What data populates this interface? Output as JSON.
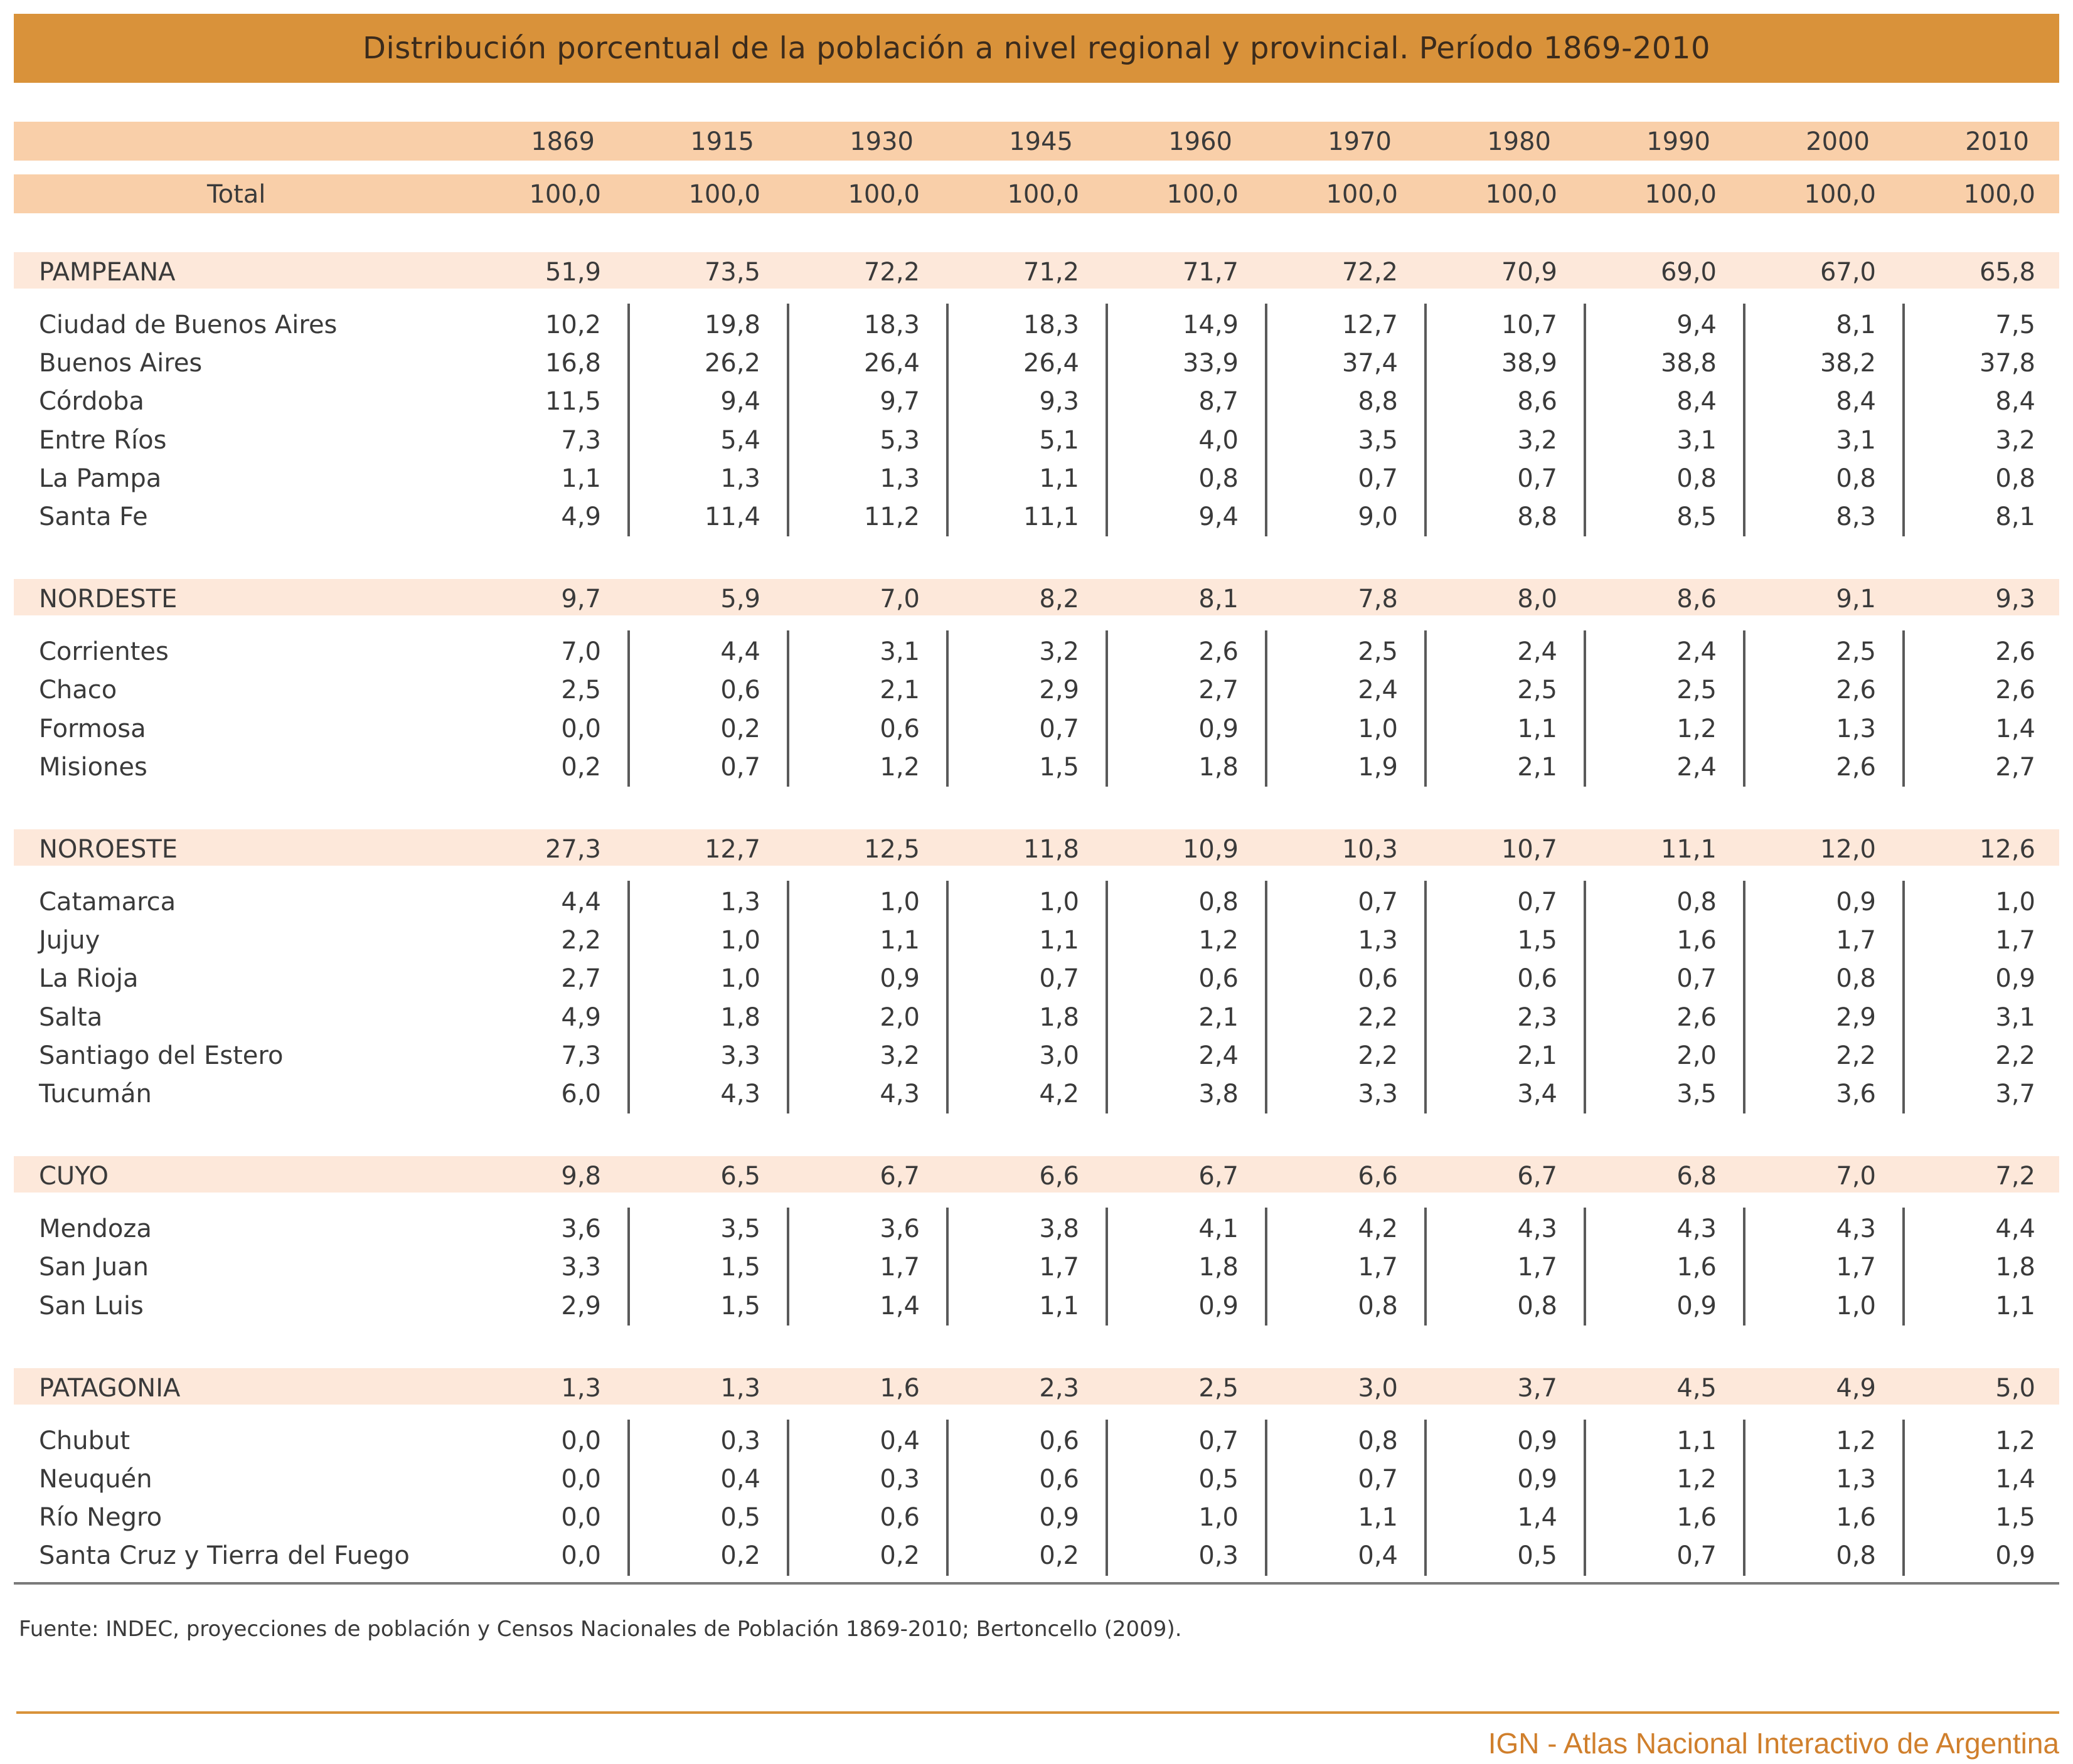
{
  "title": "Distribución porcentual de la población a nivel regional y provincial. Período 1869-2010",
  "years": [
    "1869",
    "1915",
    "1930",
    "1945",
    "1960",
    "1970",
    "1980",
    "1990",
    "2000",
    "2010"
  ],
  "total": {
    "label": "Total",
    "values": [
      "100,0",
      "100,0",
      "100,0",
      "100,0",
      "100,0",
      "100,0",
      "100,0",
      "100,0",
      "100,0",
      "100,0"
    ]
  },
  "regions": [
    {
      "name": "PAMPEANA",
      "values": [
        "51,9",
        "73,5",
        "72,2",
        "71,2",
        "71,7",
        "72,2",
        "70,9",
        "69,0",
        "67,0",
        "65,8"
      ],
      "provinces": [
        {
          "name": "Ciudad de Buenos Aires",
          "values": [
            "10,2",
            "19,8",
            "18,3",
            "18,3",
            "14,9",
            "12,7",
            "10,7",
            "9,4",
            "8,1",
            "7,5"
          ]
        },
        {
          "name": "Buenos Aires",
          "values": [
            "16,8",
            "26,2",
            "26,4",
            "26,4",
            "33,9",
            "37,4",
            "38,9",
            "38,8",
            "38,2",
            "37,8"
          ]
        },
        {
          "name": "Córdoba",
          "values": [
            "11,5",
            "9,4",
            "9,7",
            "9,3",
            "8,7",
            "8,8",
            "8,6",
            "8,4",
            "8,4",
            "8,4"
          ]
        },
        {
          "name": "Entre Ríos",
          "values": [
            "7,3",
            "5,4",
            "5,3",
            "5,1",
            "4,0",
            "3,5",
            "3,2",
            "3,1",
            "3,1",
            "3,2"
          ]
        },
        {
          "name": "La Pampa",
          "values": [
            "1,1",
            "1,3",
            "1,3",
            "1,1",
            "0,8",
            "0,7",
            "0,7",
            "0,8",
            "0,8",
            "0,8"
          ]
        },
        {
          "name": "Santa Fe",
          "values": [
            "4,9",
            "11,4",
            "11,2",
            "11,1",
            "9,4",
            "9,0",
            "8,8",
            "8,5",
            "8,3",
            "8,1"
          ]
        }
      ]
    },
    {
      "name": "NORDESTE",
      "values": [
        "9,7",
        "5,9",
        "7,0",
        "8,2",
        "8,1",
        "7,8",
        "8,0",
        "8,6",
        "9,1",
        "9,3"
      ],
      "provinces": [
        {
          "name": "Corrientes",
          "values": [
            "7,0",
            "4,4",
            "3,1",
            "3,2",
            "2,6",
            "2,5",
            "2,4",
            "2,4",
            "2,5",
            "2,6"
          ]
        },
        {
          "name": "Chaco",
          "values": [
            "2,5",
            "0,6",
            "2,1",
            "2,9",
            "2,7",
            "2,4",
            "2,5",
            "2,5",
            "2,6",
            "2,6"
          ]
        },
        {
          "name": "Formosa",
          "values": [
            "0,0",
            "0,2",
            "0,6",
            "0,7",
            "0,9",
            "1,0",
            "1,1",
            "1,2",
            "1,3",
            "1,4"
          ]
        },
        {
          "name": "Misiones",
          "values": [
            "0,2",
            "0,7",
            "1,2",
            "1,5",
            "1,8",
            "1,9",
            "2,1",
            "2,4",
            "2,6",
            "2,7"
          ]
        }
      ]
    },
    {
      "name": "NOROESTE",
      "values": [
        "27,3",
        "12,7",
        "12,5",
        "11,8",
        "10,9",
        "10,3",
        "10,7",
        "11,1",
        "12,0",
        "12,6"
      ],
      "provinces": [
        {
          "name": "Catamarca",
          "values": [
            "4,4",
            "1,3",
            "1,0",
            "1,0",
            "0,8",
            "0,7",
            "0,7",
            "0,8",
            "0,9",
            "1,0"
          ]
        },
        {
          "name": "Jujuy",
          "values": [
            "2,2",
            "1,0",
            "1,1",
            "1,1",
            "1,2",
            "1,3",
            "1,5",
            "1,6",
            "1,7",
            "1,7"
          ]
        },
        {
          "name": "La Rioja",
          "values": [
            "2,7",
            "1,0",
            "0,9",
            "0,7",
            "0,6",
            "0,6",
            "0,6",
            "0,7",
            "0,8",
            "0,9"
          ]
        },
        {
          "name": "Salta",
          "values": [
            "4,9",
            "1,8",
            "2,0",
            "1,8",
            "2,1",
            "2,2",
            "2,3",
            "2,6",
            "2,9",
            "3,1"
          ]
        },
        {
          "name": "Santiago del Estero",
          "values": [
            "7,3",
            "3,3",
            "3,2",
            "3,0",
            "2,4",
            "2,2",
            "2,1",
            "2,0",
            "2,2",
            "2,2"
          ]
        },
        {
          "name": "Tucumán",
          "values": [
            "6,0",
            "4,3",
            "4,3",
            "4,2",
            "3,8",
            "3,3",
            "3,4",
            "3,5",
            "3,6",
            "3,7"
          ]
        }
      ]
    },
    {
      "name": "CUYO",
      "values": [
        "9,8",
        "6,5",
        "6,7",
        "6,6",
        "6,7",
        "6,6",
        "6,7",
        "6,8",
        "7,0",
        "7,2"
      ],
      "provinces": [
        {
          "name": "Mendoza",
          "values": [
            "3,6",
            "3,5",
            "3,6",
            "3,8",
            "4,1",
            "4,2",
            "4,3",
            "4,3",
            "4,3",
            "4,4"
          ]
        },
        {
          "name": "San Juan",
          "values": [
            "3,3",
            "1,5",
            "1,7",
            "1,7",
            "1,8",
            "1,7",
            "1,7",
            "1,6",
            "1,7",
            "1,8"
          ]
        },
        {
          "name": "San Luis",
          "values": [
            "2,9",
            "1,5",
            "1,4",
            "1,1",
            "0,9",
            "0,8",
            "0,8",
            "0,9",
            "1,0",
            "1,1"
          ]
        }
      ]
    },
    {
      "name": "PATAGONIA",
      "values": [
        "1,3",
        "1,3",
        "1,6",
        "2,3",
        "2,5",
        "3,0",
        "3,7",
        "4,5",
        "4,9",
        "5,0"
      ],
      "provinces": [
        {
          "name": "Chubut",
          "values": [
            "0,0",
            "0,3",
            "0,4",
            "0,6",
            "0,7",
            "0,8",
            "0,9",
            "1,1",
            "1,2",
            "1,2"
          ]
        },
        {
          "name": "Neuquén",
          "values": [
            "0,0",
            "0,4",
            "0,3",
            "0,6",
            "0,5",
            "0,7",
            "0,9",
            "1,2",
            "1,3",
            "1,4"
          ]
        },
        {
          "name": "Río Negro",
          "values": [
            "0,0",
            "0,5",
            "0,6",
            "0,9",
            "1,0",
            "1,1",
            "1,4",
            "1,6",
            "1,6",
            "1,5"
          ]
        },
        {
          "name": "Santa Cruz y Tierra del Fuego",
          "values": [
            "0,0",
            "0,2",
            "0,2",
            "0,2",
            "0,3",
            "0,4",
            "0,5",
            "0,7",
            "0,8",
            "0,9"
          ]
        }
      ]
    }
  ],
  "source": "Fuente: INDEC, proyecciones de población y Censos Nacionales de Población 1869-2010; Bertoncello (2009).",
  "footer": "IGN - Atlas Nacional Interactivo de Argentina",
  "colors": {
    "title_bar": "#D9923A",
    "header_band": "#F9CFA9",
    "region_band": "#FDE8DA",
    "footer_text": "#D07F2C"
  }
}
